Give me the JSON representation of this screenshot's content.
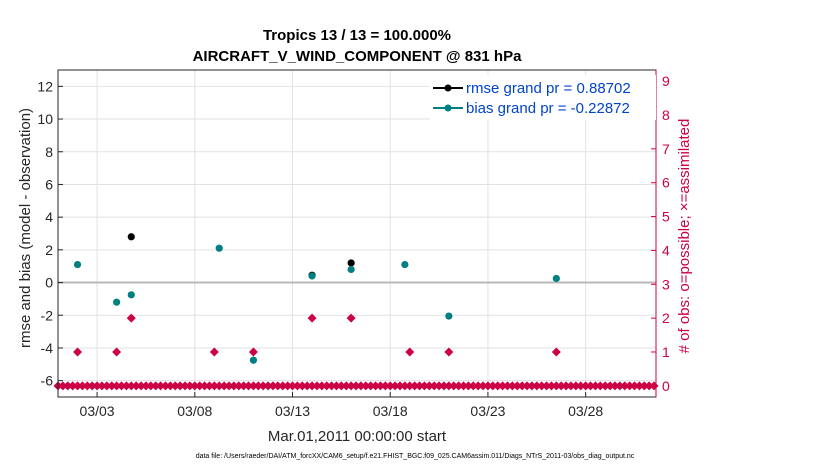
{
  "chart_data": {
    "type": "scatter",
    "title": [
      "Tropics 13 / 13 = 100.000%",
      "AIRCRAFT_V_WIND_COMPONENT @ 831 hPa"
    ],
    "xlabel": "Mar.01,2011 00:00:00 start",
    "ylabel": "rmse and bias (model - observation)",
    "ylabel_right": "# of obs: o=possible; ×=assimilated",
    "xlim": [
      1.0,
      31.6
    ],
    "ylim": [
      -7,
      13
    ],
    "ylim_right": [
      -0.33,
      9.33
    ],
    "x_ticks": [
      3,
      8,
      13,
      18,
      23,
      28
    ],
    "x_tick_labels": [
      "03/03",
      "03/08",
      "03/13",
      "03/18",
      "03/23",
      "03/28"
    ],
    "y_ticks": [
      -6,
      -4,
      -2,
      0,
      2,
      4,
      6,
      8,
      10,
      12
    ],
    "y_ticks_right": [
      0,
      1,
      2,
      3,
      4,
      5,
      6,
      7,
      8,
      9
    ],
    "grid": true,
    "zero_line": 0,
    "legend": {
      "position": "top-right",
      "entries": [
        "rmse grand pr = 0.88702",
        "bias grand pr = -0.22872"
      ]
    },
    "colors": {
      "rmse": "#000000",
      "bias": "#008080",
      "obs": "#cc0044",
      "zero_line": "#b8b8b8"
    },
    "series": [
      {
        "name": "rmse",
        "x": [
          4.75,
          14.0,
          16.0
        ],
        "y": [
          2.8,
          0.45,
          1.2
        ]
      },
      {
        "name": "bias",
        "x": [
          2.0,
          4.0,
          4.75,
          9.25,
          11.0,
          14.0,
          16.0,
          18.75,
          21.0,
          26.5
        ],
        "y": [
          1.1,
          -1.2,
          -0.75,
          2.1,
          -4.75,
          0.4,
          0.8,
          1.1,
          -2.05,
          0.25
        ]
      },
      {
        "name": "obs_possible",
        "x": [
          2.0,
          4.0,
          4.75,
          9.0,
          11.0,
          14.0,
          16.0,
          19.0,
          21.0,
          26.5
        ],
        "y": [
          1,
          1,
          2,
          1,
          1,
          2,
          2,
          1,
          1,
          1
        ]
      },
      {
        "name": "obs_zero_baseline",
        "x_range": [
          1.0,
          31.5
        ],
        "x_step": 0.25,
        "y": 0
      }
    ],
    "footnote": "data file: /Users/raeder/DAI/ATM_forcXX/CAM6_setup/f.e21.FHIST_BGC.f09_025.CAM6assim.011/Diags_NTrS_2011-03/obs_diag_output.nc"
  }
}
